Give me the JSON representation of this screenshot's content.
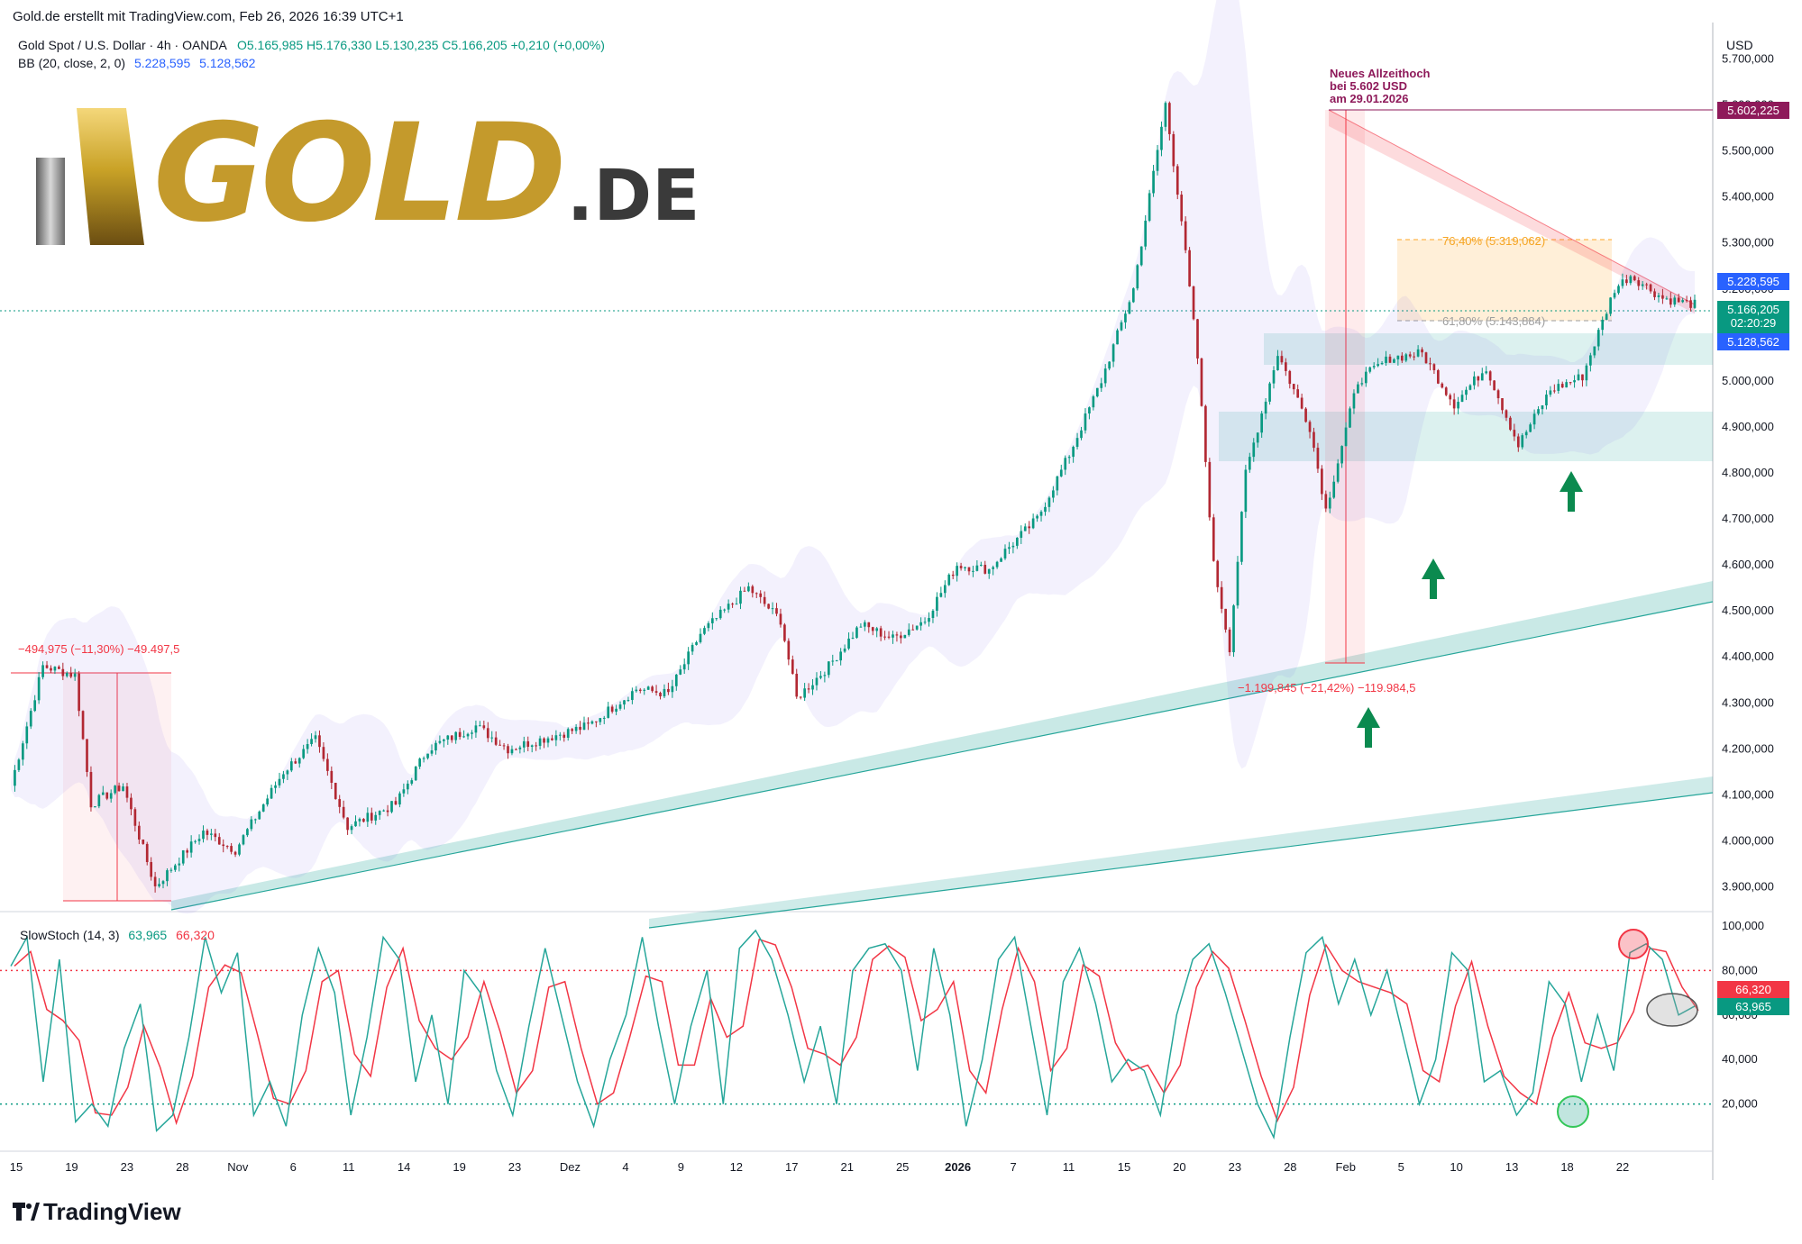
{
  "header": {
    "credit": "Gold.de erstellt mit TradingView.com, Feb 26, 2026 16:39 UTC+1",
    "symbol_line": "Gold Spot / U.S. Dollar · 4h · OANDA",
    "ohlc": "O5.165,985  H5.176,330  L5.130,235  C5.166,205  +0,210 (+0,00%)",
    "bb_label": "BB (20, close, 2, 0)",
    "bb_upper": "5.228,595",
    "bb_lower": "5.128,562",
    "currency": "USD"
  },
  "logo": {
    "main": "GOLD",
    "suffix": ".DE"
  },
  "footer": {
    "brand": "TradingView"
  },
  "colors": {
    "up": "#089981",
    "down": "#b22833",
    "bb": "#7b68ee",
    "gold": "#c9a227",
    "support": "#26a69a",
    "fib": "#ffa726",
    "ath": "#8e1a5a"
  },
  "chart_data": [
    {
      "type": "candlestick",
      "title": "Gold Spot / U.S. Dollar · 4h · OANDA",
      "y_range": [
        3850000,
        5750000
      ],
      "y_ticks": [
        "5.700,000",
        "5.600,000",
        "5.500,000",
        "5.400,000",
        "5.300,000",
        "5.200,000",
        "5.100,000",
        "5.000,000",
        "4.900,000",
        "4.800,000",
        "4.700,000",
        "4.600,000",
        "4.500,000",
        "4.400,000",
        "4.300,000",
        "4.200,000",
        "4.100,000",
        "4.000,000",
        "3.900,000"
      ],
      "x_tick_labels": [
        "15",
        "19",
        "23",
        "28",
        "Nov",
        "6",
        "11",
        "14",
        "19",
        "23",
        "Dez",
        "4",
        "9",
        "12",
        "17",
        "21",
        "25",
        "2026",
        "7",
        "11",
        "15",
        "20",
        "23",
        "28",
        "Feb",
        "5",
        "10",
        "13",
        "18",
        "22"
      ],
      "approx_close_path": [
        {
          "x": 0,
          "y": 4120000
        },
        {
          "x": 2,
          "y": 4380000
        },
        {
          "x": 4,
          "y": 4360000
        },
        {
          "x": 5,
          "y": 4080000
        },
        {
          "x": 7,
          "y": 4120000
        },
        {
          "x": 9,
          "y": 3900000
        },
        {
          "x": 12,
          "y": 4020000
        },
        {
          "x": 14,
          "y": 3980000
        },
        {
          "x": 17,
          "y": 4150000
        },
        {
          "x": 19,
          "y": 4220000
        },
        {
          "x": 21,
          "y": 4030000
        },
        {
          "x": 24,
          "y": 4080000
        },
        {
          "x": 26,
          "y": 4200000
        },
        {
          "x": 29,
          "y": 4250000
        },
        {
          "x": 31,
          "y": 4200000
        },
        {
          "x": 33,
          "y": 4220000
        },
        {
          "x": 36,
          "y": 4250000
        },
        {
          "x": 39,
          "y": 4330000
        },
        {
          "x": 41,
          "y": 4320000
        },
        {
          "x": 43,
          "y": 4450000
        },
        {
          "x": 46,
          "y": 4550000
        },
        {
          "x": 48,
          "y": 4480000
        },
        {
          "x": 49,
          "y": 4310000
        },
        {
          "x": 51,
          "y": 4380000
        },
        {
          "x": 53,
          "y": 4470000
        },
        {
          "x": 55,
          "y": 4440000
        },
        {
          "x": 57,
          "y": 4480000
        },
        {
          "x": 59,
          "y": 4600000
        },
        {
          "x": 61,
          "y": 4590000
        },
        {
          "x": 62,
          "y": 4630000
        },
        {
          "x": 64,
          "y": 4700000
        },
        {
          "x": 66,
          "y": 4840000
        },
        {
          "x": 68,
          "y": 5000000
        },
        {
          "x": 70,
          "y": 5200000
        },
        {
          "x": 72,
          "y": 5602225
        },
        {
          "x": 73,
          "y": 5350000
        },
        {
          "x": 74,
          "y": 5050000
        },
        {
          "x": 75,
          "y": 4600000
        },
        {
          "x": 76,
          "y": 4420000
        },
        {
          "x": 77,
          "y": 4800000
        },
        {
          "x": 79,
          "y": 5060000
        },
        {
          "x": 81,
          "y": 4900000
        },
        {
          "x": 82,
          "y": 4720000
        },
        {
          "x": 84,
          "y": 5000000
        },
        {
          "x": 86,
          "y": 5050000
        },
        {
          "x": 88,
          "y": 5060000
        },
        {
          "x": 90,
          "y": 4950000
        },
        {
          "x": 92,
          "y": 5030000
        },
        {
          "x": 94,
          "y": 4860000
        },
        {
          "x": 96,
          "y": 4980000
        },
        {
          "x": 98,
          "y": 5010000
        },
        {
          "x": 100,
          "y": 5200000
        },
        {
          "x": 101,
          "y": 5230000
        },
        {
          "x": 103,
          "y": 5180000
        },
        {
          "x": 105,
          "y": 5166205
        }
      ],
      "annotations": {
        "ath": [
          "Neues Allzeithoch",
          "bei 5.602 USD",
          "am 29.01.2026"
        ],
        "ath_price": "5.602,225",
        "fib_764": "76,40% (5.319,062)",
        "fib_618": "61,80% (5.143,884)",
        "drop_big": "−1.199,845 (−21,42%) −119.984,5",
        "drop_small": "−494,975 (−11,30%) −49.497,5"
      },
      "price_tags": {
        "bb_upper": "5.228,595",
        "last": "5.166,205",
        "countdown": "02:20:29",
        "bb_lower": "5.128,562"
      }
    },
    {
      "type": "line",
      "title": "SlowStoch (14, 3)",
      "k_value": "63,965",
      "d_value": "66,320",
      "y_range": [
        0,
        100
      ],
      "y_ticks": [
        "100,000",
        "80,000",
        "60,000",
        "40,000",
        "20,000"
      ],
      "levels": [
        80,
        20
      ],
      "approx_k": [
        82,
        95,
        30,
        85,
        12,
        20,
        10,
        45,
        65,
        8,
        15,
        50,
        95,
        70,
        88,
        15,
        30,
        10,
        60,
        90,
        70,
        15,
        50,
        95,
        85,
        30,
        60,
        20,
        80,
        70,
        35,
        15,
        55,
        90,
        60,
        30,
        10,
        40,
        60,
        95,
        55,
        20,
        55,
        80,
        20,
        90,
        98,
        85,
        60,
        30,
        55,
        20,
        80,
        90,
        92,
        80,
        35,
        90,
        60,
        10,
        40,
        85,
        95,
        55,
        15,
        75,
        90,
        65,
        30,
        40,
        35,
        15,
        60,
        85,
        92,
        70,
        45,
        20,
        5,
        50,
        88,
        95,
        65,
        85,
        60,
        80,
        50,
        20,
        40,
        88,
        80,
        30,
        35,
        15,
        25,
        75,
        65,
        30,
        60,
        35,
        88,
        92,
        85,
        60,
        64
      ]
    }
  ]
}
